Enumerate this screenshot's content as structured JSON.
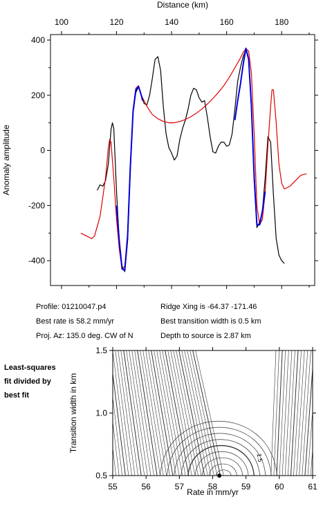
{
  "chart_data": [
    {
      "type": "line",
      "xlabel": "Distance (km)",
      "ylabel": "Anomaly amplitude",
      "xlim": [
        96,
        192
      ],
      "ylim": [
        -490,
        420
      ],
      "x_ticks": [
        100,
        120,
        140,
        160,
        180
      ],
      "y_ticks": [
        -400,
        -200,
        0,
        200,
        400
      ],
      "x_axis_position": "top",
      "grid": false,
      "series": [
        {
          "color": "#000000",
          "points": [
            [
              113,
              -145
            ],
            [
              114,
              -125
            ],
            [
              115,
              -130
            ],
            [
              116,
              -110
            ],
            [
              117,
              -50
            ],
            [
              118,
              75
            ],
            [
              118.5,
              100
            ],
            [
              119,
              80
            ],
            [
              120,
              -150
            ],
            [
              121,
              -330
            ],
            [
              122,
              -420
            ],
            [
              123,
              -440
            ],
            [
              124,
              -330
            ],
            [
              125,
              -80
            ],
            [
              126,
              140
            ],
            [
              127,
              210
            ],
            [
              128,
              230
            ],
            [
              129,
              200
            ],
            [
              130,
              170
            ],
            [
              131,
              165
            ],
            [
              132,
              200
            ],
            [
              133,
              260
            ],
            [
              134,
              330
            ],
            [
              135,
              340
            ],
            [
              136,
              290
            ],
            [
              137,
              160
            ],
            [
              138,
              60
            ],
            [
              139,
              10
            ],
            [
              140,
              -10
            ],
            [
              141,
              -35
            ],
            [
              142,
              -20
            ],
            [
              143,
              40
            ],
            [
              144,
              80
            ],
            [
              145,
              110
            ],
            [
              146,
              150
            ],
            [
              147,
              200
            ],
            [
              148,
              225
            ],
            [
              149,
              220
            ],
            [
              150,
              190
            ],
            [
              151,
              175
            ],
            [
              152,
              180
            ],
            [
              153,
              120
            ],
            [
              154,
              50
            ],
            [
              155,
              -5
            ],
            [
              156,
              -10
            ],
            [
              157,
              15
            ],
            [
              158,
              30
            ],
            [
              159,
              30
            ],
            [
              160,
              15
            ],
            [
              161,
              20
            ],
            [
              162,
              60
            ],
            [
              163,
              150
            ],
            [
              164,
              250
            ],
            [
              165,
              300
            ],
            [
              166,
              340
            ],
            [
              167,
              365
            ],
            [
              168,
              330
            ],
            [
              169,
              150
            ],
            [
              170,
              -80
            ],
            [
              171,
              -280
            ],
            [
              172,
              -260
            ],
            [
              173,
              -220
            ],
            [
              174,
              -100
            ],
            [
              175,
              50
            ],
            [
              176,
              30
            ],
            [
              177,
              -160
            ],
            [
              178,
              -320
            ],
            [
              179,
              -380
            ],
            [
              180,
              -400
            ],
            [
              181,
              -410
            ]
          ]
        },
        {
          "color": "#dd0000",
          "points": [
            [
              107,
              -300
            ],
            [
              109,
              -310
            ],
            [
              111,
              -320
            ],
            [
              112,
              -310
            ],
            [
              114,
              -240
            ],
            [
              116,
              -100
            ],
            [
              117,
              10
            ],
            [
              117.5,
              40
            ],
            [
              118,
              30
            ],
            [
              119,
              -100
            ],
            [
              120,
              -250
            ],
            [
              121,
              -360
            ],
            [
              122,
              -430
            ],
            [
              123,
              -420
            ],
            [
              124,
              -300
            ],
            [
              125,
              -60
            ],
            [
              126,
              150
            ],
            [
              127,
              225
            ],
            [
              128,
              235
            ],
            [
              129,
              200
            ],
            [
              131,
              160
            ],
            [
              133,
              130
            ],
            [
              135,
              115
            ],
            [
              137,
              105
            ],
            [
              139,
              100
            ],
            [
              141,
              100
            ],
            [
              143,
              105
            ],
            [
              145,
              112
            ],
            [
              147,
              122
            ],
            [
              149,
              135
            ],
            [
              151,
              150
            ],
            [
              153,
              168
            ],
            [
              155,
              188
            ],
            [
              157,
              210
            ],
            [
              159,
              235
            ],
            [
              161,
              265
            ],
            [
              163,
              300
            ],
            [
              165,
              335
            ],
            [
              166,
              355
            ],
            [
              167,
              368
            ],
            [
              168,
              360
            ],
            [
              169,
              280
            ],
            [
              170,
              60
            ],
            [
              171,
              -200
            ],
            [
              172,
              -270
            ],
            [
              173,
              -250
            ],
            [
              174,
              -150
            ],
            [
              175,
              20
            ],
            [
              176,
              160
            ],
            [
              176.5,
              220
            ],
            [
              177,
              220
            ],
            [
              178,
              100
            ],
            [
              179,
              -50
            ],
            [
              180,
              -120
            ],
            [
              181,
              -140
            ],
            [
              183,
              -130
            ],
            [
              185,
              -110
            ],
            [
              187,
              -90
            ],
            [
              189,
              -85
            ]
          ]
        },
        {
          "color": "#0000dd",
          "points": [
            [
              120,
              -200
            ],
            [
              121,
              -330
            ],
            [
              122,
              -430
            ],
            [
              123,
              -435
            ],
            [
              124,
              -320
            ],
            [
              125,
              -60
            ],
            [
              126,
              140
            ],
            [
              127,
              220
            ],
            [
              128,
              232
            ],
            [
              129,
              200
            ],
            [
              129.5,
              180
            ]
          ]
        },
        {
          "color": "#0000dd",
          "points": [
            [
              163,
              110
            ],
            [
              164,
              180
            ],
            [
              165,
              240
            ],
            [
              166,
              310
            ],
            [
              167,
              370
            ],
            [
              168,
              330
            ],
            [
              169,
              160
            ],
            [
              170,
              -100
            ],
            [
              171,
              -270
            ],
            [
              172,
              -270
            ],
            [
              173,
              -220
            ],
            [
              174,
              -150
            ]
          ]
        }
      ]
    },
    {
      "type": "contour",
      "xlabel": "Rate in mm/yr",
      "ylabel": "Transition width in km",
      "xlim": [
        55,
        61
      ],
      "ylim": [
        0.5,
        1.5
      ],
      "x_ticks": [
        55,
        56,
        57,
        58,
        59,
        60,
        61
      ],
      "y_ticks": [
        0.5,
        1.0,
        1.5
      ],
      "grid": false,
      "best_fit": {
        "rate": 58.2,
        "width": 0.5
      },
      "contour_label": "1.5"
    }
  ],
  "info": {
    "profile": "Profile: 01210047.p4",
    "best_rate": "Best rate is 58.2 mm/yr",
    "proj_az": "Proj. Az: 135.0 deg. CW of N",
    "ridge_xing": "Ridge Xing is -64.37 -171.46",
    "transition_width": "Best transition width is 0.5 km",
    "depth": "Depth to source is   2.87 km"
  },
  "side_note": [
    "Least-squares",
    "fit divided by",
    "best fit"
  ]
}
